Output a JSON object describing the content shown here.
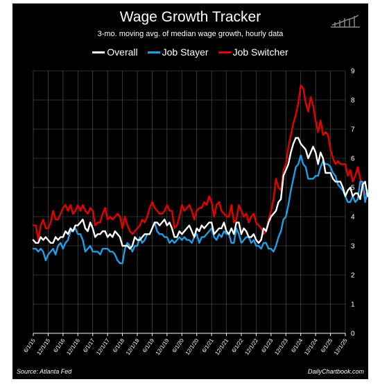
{
  "chart_data": {
    "type": "line",
    "title": "Wage Growth Tracker",
    "subtitle": "3-mo. moving avg. of median wage growth, hourly data",
    "xlabel": "",
    "ylabel": "",
    "ylim": [
      0,
      9
    ],
    "yticks": [
      "0",
      "1",
      "2",
      "3",
      "4",
      "5",
      "6",
      "7",
      "8",
      "9"
    ],
    "xticks": [
      "6/1/15",
      "12/1/15",
      "6/1/16",
      "12/1/16",
      "6/1/17",
      "12/1/17",
      "6/1/18",
      "12/1/18",
      "6/1/19",
      "12/1/19",
      "6/1/20",
      "12/1/20",
      "6/1/21",
      "12/1/21",
      "6/1/22",
      "12/1/22",
      "6/1/23",
      "12/1/23",
      "6/1/24",
      "12/1/24",
      "6/1/25",
      "12/1/25"
    ],
    "x_start": "2015-06",
    "grid": true,
    "legend_position": "top",
    "series": [
      {
        "name": "Overall",
        "color": "#ffffff",
        "values": [
          3.2,
          3.1,
          3.1,
          3.3,
          3.2,
          3.3,
          3.2,
          3.1,
          3.1,
          3.3,
          3.2,
          3.3,
          3.3,
          3.5,
          3.4,
          3.6,
          3.5,
          3.7,
          3.7,
          3.8,
          3.9,
          3.6,
          3.5,
          3.8,
          3.6,
          3.3,
          3.4,
          3.4,
          3.5,
          3.5,
          3.3,
          3.4,
          3.3,
          3.5,
          3.4,
          3.3,
          3.0,
          3.0,
          3.0,
          2.9,
          3.0,
          3.3,
          3.2,
          3.2,
          3.3,
          3.4,
          3.4,
          3.4,
          3.6,
          3.8,
          3.8,
          3.7,
          3.8,
          3.9,
          3.7,
          3.8,
          3.6,
          3.3,
          3.3,
          3.5,
          3.4,
          3.5,
          3.6,
          3.7,
          3.5,
          3.3,
          3.6,
          3.5,
          3.7,
          3.6,
          3.7,
          3.8,
          3.8,
          3.4,
          3.5,
          3.6,
          3.6,
          3.8,
          3.5,
          3.4,
          3.6,
          3.4,
          3.8,
          3.8,
          3.4,
          3.6,
          3.5,
          3.3,
          3.3,
          3.4,
          3.2,
          3.1,
          3.2,
          3.6,
          3.5,
          3.8,
          4.0,
          4.1,
          4.2,
          4.5,
          4.6,
          5.4,
          5.6,
          5.8,
          6.2,
          6.5,
          6.7,
          6.7,
          6.5,
          6.4,
          6.3,
          6.0,
          6.2,
          6.4,
          6.2,
          5.8,
          6.2,
          6.0,
          5.5,
          5.5,
          5.5,
          5.3,
          5.2,
          5.2,
          5.2,
          5.0,
          4.7,
          4.9,
          5.0,
          4.7,
          4.8,
          4.8,
          4.6,
          5.1,
          5.2,
          4.7,
          4.7,
          4.5,
          4.5,
          4.3,
          4.3,
          4.4,
          4.3,
          4.3,
          4.2
        ]
      },
      {
        "name": "Job Stayer",
        "color": "#1e9fe6",
        "values": [
          2.9,
          2.9,
          2.8,
          2.9,
          2.8,
          2.5,
          2.7,
          2.8,
          2.9,
          2.7,
          3.0,
          3.1,
          2.9,
          3.1,
          3.2,
          3.5,
          3.5,
          3.6,
          3.4,
          3.4,
          3.2,
          2.8,
          2.9,
          3.0,
          2.8,
          2.8,
          2.8,
          2.7,
          2.9,
          2.9,
          2.9,
          2.8,
          2.8,
          2.7,
          2.5,
          2.4,
          2.4,
          2.9,
          3.1,
          3.0,
          2.8,
          3.0,
          3.0,
          3.3,
          3.1,
          3.2,
          3.4,
          3.4,
          3.6,
          3.8,
          3.5,
          3.4,
          3.4,
          3.3,
          3.3,
          3.1,
          3.2,
          3.1,
          3.2,
          3.3,
          3.2,
          3.3,
          3.2,
          3.2,
          3.1,
          3.3,
          3.4,
          3.1,
          3.3,
          3.3,
          3.4,
          3.5,
          3.6,
          3.3,
          3.2,
          3.4,
          3.3,
          3.5,
          3.4,
          3.4,
          3.1,
          3.1,
          3.6,
          3.4,
          3.1,
          3.2,
          3.3,
          3.3,
          3.1,
          3.2,
          3.0,
          3.0,
          2.9,
          3.1,
          3.1,
          2.9,
          2.9,
          2.8,
          3.0,
          3.3,
          3.5,
          3.9,
          4.0,
          4.4,
          4.9,
          5.3,
          5.7,
          5.8,
          6.1,
          5.8,
          5.7,
          5.3,
          5.3,
          5.3,
          5.4,
          5.4,
          5.7,
          5.9,
          5.8,
          5.8,
          5.7,
          5.5,
          5.4,
          5.1,
          5.0,
          4.9,
          4.7,
          4.5,
          4.5,
          4.7,
          4.5,
          4.6,
          5.2,
          5.2,
          4.5,
          4.9,
          4.6,
          4.4,
          4.1,
          4.1,
          4.4,
          4.4,
          4.4,
          4.3,
          4.2
        ]
      },
      {
        "name": "Job Switcher",
        "color": "#e60000",
        "values": [
          3.7,
          3.7,
          3.2,
          3.7,
          3.9,
          3.6,
          3.6,
          3.8,
          4.2,
          3.9,
          3.9,
          4.1,
          4.3,
          4.4,
          4.2,
          4.4,
          4.1,
          4.2,
          4.4,
          4.2,
          4.4,
          4.2,
          4.1,
          4.3,
          4.2,
          3.7,
          3.8,
          3.8,
          4.1,
          4.3,
          3.9,
          4.0,
          3.9,
          4.0,
          4.1,
          4.0,
          3.6,
          4.0,
          3.7,
          3.5,
          3.4,
          3.5,
          3.6,
          3.7,
          3.9,
          3.8,
          4.0,
          4.3,
          4.5,
          4.3,
          4.2,
          4.1,
          4.1,
          4.2,
          4.4,
          4.2,
          4.2,
          3.6,
          3.7,
          4.0,
          4.4,
          4.2,
          4.3,
          4.4,
          4.2,
          3.9,
          4.2,
          4.3,
          4.3,
          4.5,
          4.4,
          4.7,
          4.5,
          4.0,
          4.4,
          4.5,
          4.2,
          4.1,
          4.0,
          4.0,
          4.4,
          3.8,
          3.9,
          4.4,
          4.2,
          4.0,
          4.1,
          3.8,
          4.0,
          4.1,
          3.8,
          3.7,
          3.6,
          3.4,
          3.5,
          3.9,
          4.2,
          4.6,
          5.3,
          5.0,
          4.9,
          5.6,
          5.8,
          6.4,
          6.8,
          7.2,
          7.5,
          7.9,
          8.5,
          8.4,
          7.9,
          7.6,
          8.1,
          7.8,
          7.3,
          6.9,
          7.3,
          6.8,
          6.9,
          6.8,
          6.3,
          6.0,
          5.8,
          5.9,
          5.8,
          5.8,
          5.8,
          5.4,
          5.6,
          5.2,
          5.4,
          5.7,
          5.3,
          5.0,
          4.8,
          4.7,
          4.6,
          4.4,
          4.3,
          4.2,
          4.2,
          4.3,
          4.3,
          4.1,
          4.0
        ]
      }
    ]
  },
  "footer": {
    "source": "Source: Atlanta Fed",
    "credit": "DailyChartbook.com"
  },
  "logo": {
    "icon": "chartbook-logo-icon",
    "color": "#888888"
  }
}
